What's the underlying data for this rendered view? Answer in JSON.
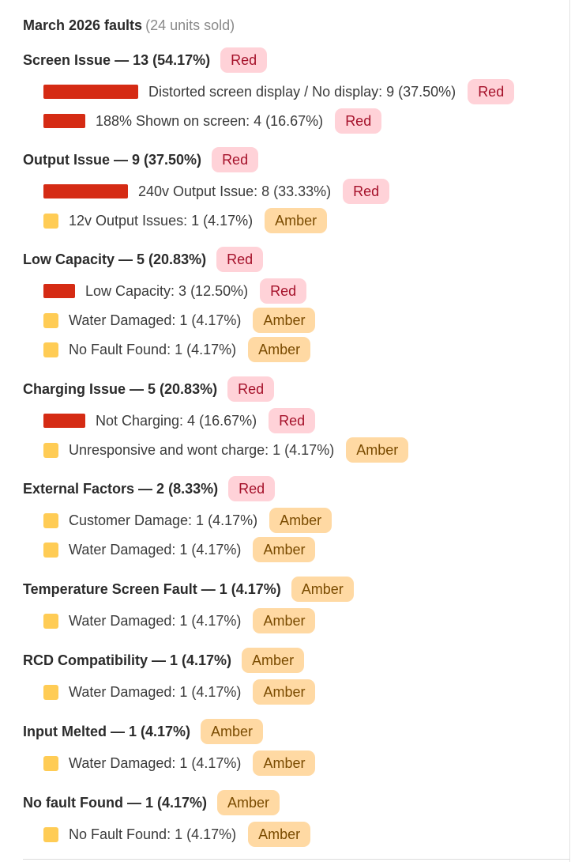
{
  "header": {
    "title": "March 2026 faults",
    "subtitle": "(24 units sold)"
  },
  "colors": {
    "red_bar": "#d52b14",
    "amber_square": "#ffcc55",
    "red_badge_bg": "#ffd2d8",
    "amber_badge_bg": "#ffd9a3"
  },
  "groups": [
    {
      "label": "Screen Issue — 13 (54.17%)",
      "badge": "Red",
      "items": [
        {
          "label": "Distorted screen display / No display: 9 (37.50%)",
          "badge": "Red",
          "marker": "bar",
          "share": 0.375
        },
        {
          "label": "188% Shown on screen: 4 (16.67%)",
          "badge": "Red",
          "marker": "bar",
          "share": 0.1667
        }
      ]
    },
    {
      "label": "Output Issue — 9 (37.50%)",
      "badge": "Red",
      "items": [
        {
          "label": "240v Output Issue: 8 (33.33%)",
          "badge": "Red",
          "marker": "bar",
          "share": 0.3333
        },
        {
          "label": "12v Output Issues: 1 (4.17%)",
          "badge": "Amber",
          "marker": "square",
          "share": 0.0417
        }
      ]
    },
    {
      "label": "Low Capacity — 5 (20.83%)",
      "badge": "Red",
      "items": [
        {
          "label": "Low Capacity: 3 (12.50%)",
          "badge": "Red",
          "marker": "bar",
          "share": 0.125
        },
        {
          "label": "Water Damaged: 1 (4.17%)",
          "badge": "Amber",
          "marker": "square",
          "share": 0.0417
        },
        {
          "label": "No Fault Found: 1 (4.17%)",
          "badge": "Amber",
          "marker": "square",
          "share": 0.0417
        }
      ]
    },
    {
      "label": "Charging Issue — 5 (20.83%)",
      "badge": "Red",
      "items": [
        {
          "label": "Not Charging: 4 (16.67%)",
          "badge": "Red",
          "marker": "bar",
          "share": 0.1667
        },
        {
          "label": "Unresponsive and wont charge: 1 (4.17%)",
          "badge": "Amber",
          "marker": "square",
          "share": 0.0417
        }
      ]
    },
    {
      "label": "External Factors — 2 (8.33%)",
      "badge": "Red",
      "items": [
        {
          "label": "Customer Damage: 1 (4.17%)",
          "badge": "Amber",
          "marker": "square",
          "share": 0.0417
        },
        {
          "label": "Water Damaged: 1 (4.17%)",
          "badge": "Amber",
          "marker": "square",
          "share": 0.0417
        }
      ]
    },
    {
      "label": "Temperature Screen Fault — 1 (4.17%)",
      "badge": "Amber",
      "items": [
        {
          "label": "Water Damaged: 1 (4.17%)",
          "badge": "Amber",
          "marker": "square",
          "share": 0.0417
        }
      ]
    },
    {
      "label": "RCD Compatibility — 1 (4.17%)",
      "badge": "Amber",
      "items": [
        {
          "label": "Water Damaged: 1 (4.17%)",
          "badge": "Amber",
          "marker": "square",
          "share": 0.0417
        }
      ]
    },
    {
      "label": "Input Melted — 1 (4.17%)",
      "badge": "Amber",
      "items": [
        {
          "label": "Water Damaged: 1 (4.17%)",
          "badge": "Amber",
          "marker": "square",
          "share": 0.0417
        }
      ]
    },
    {
      "label": "No fault Found — 1 (4.17%)",
      "badge": "Amber",
      "items": [
        {
          "label": "No Fault Found: 1 (4.17%)",
          "badge": "Amber",
          "marker": "square",
          "share": 0.0417
        }
      ]
    }
  ]
}
